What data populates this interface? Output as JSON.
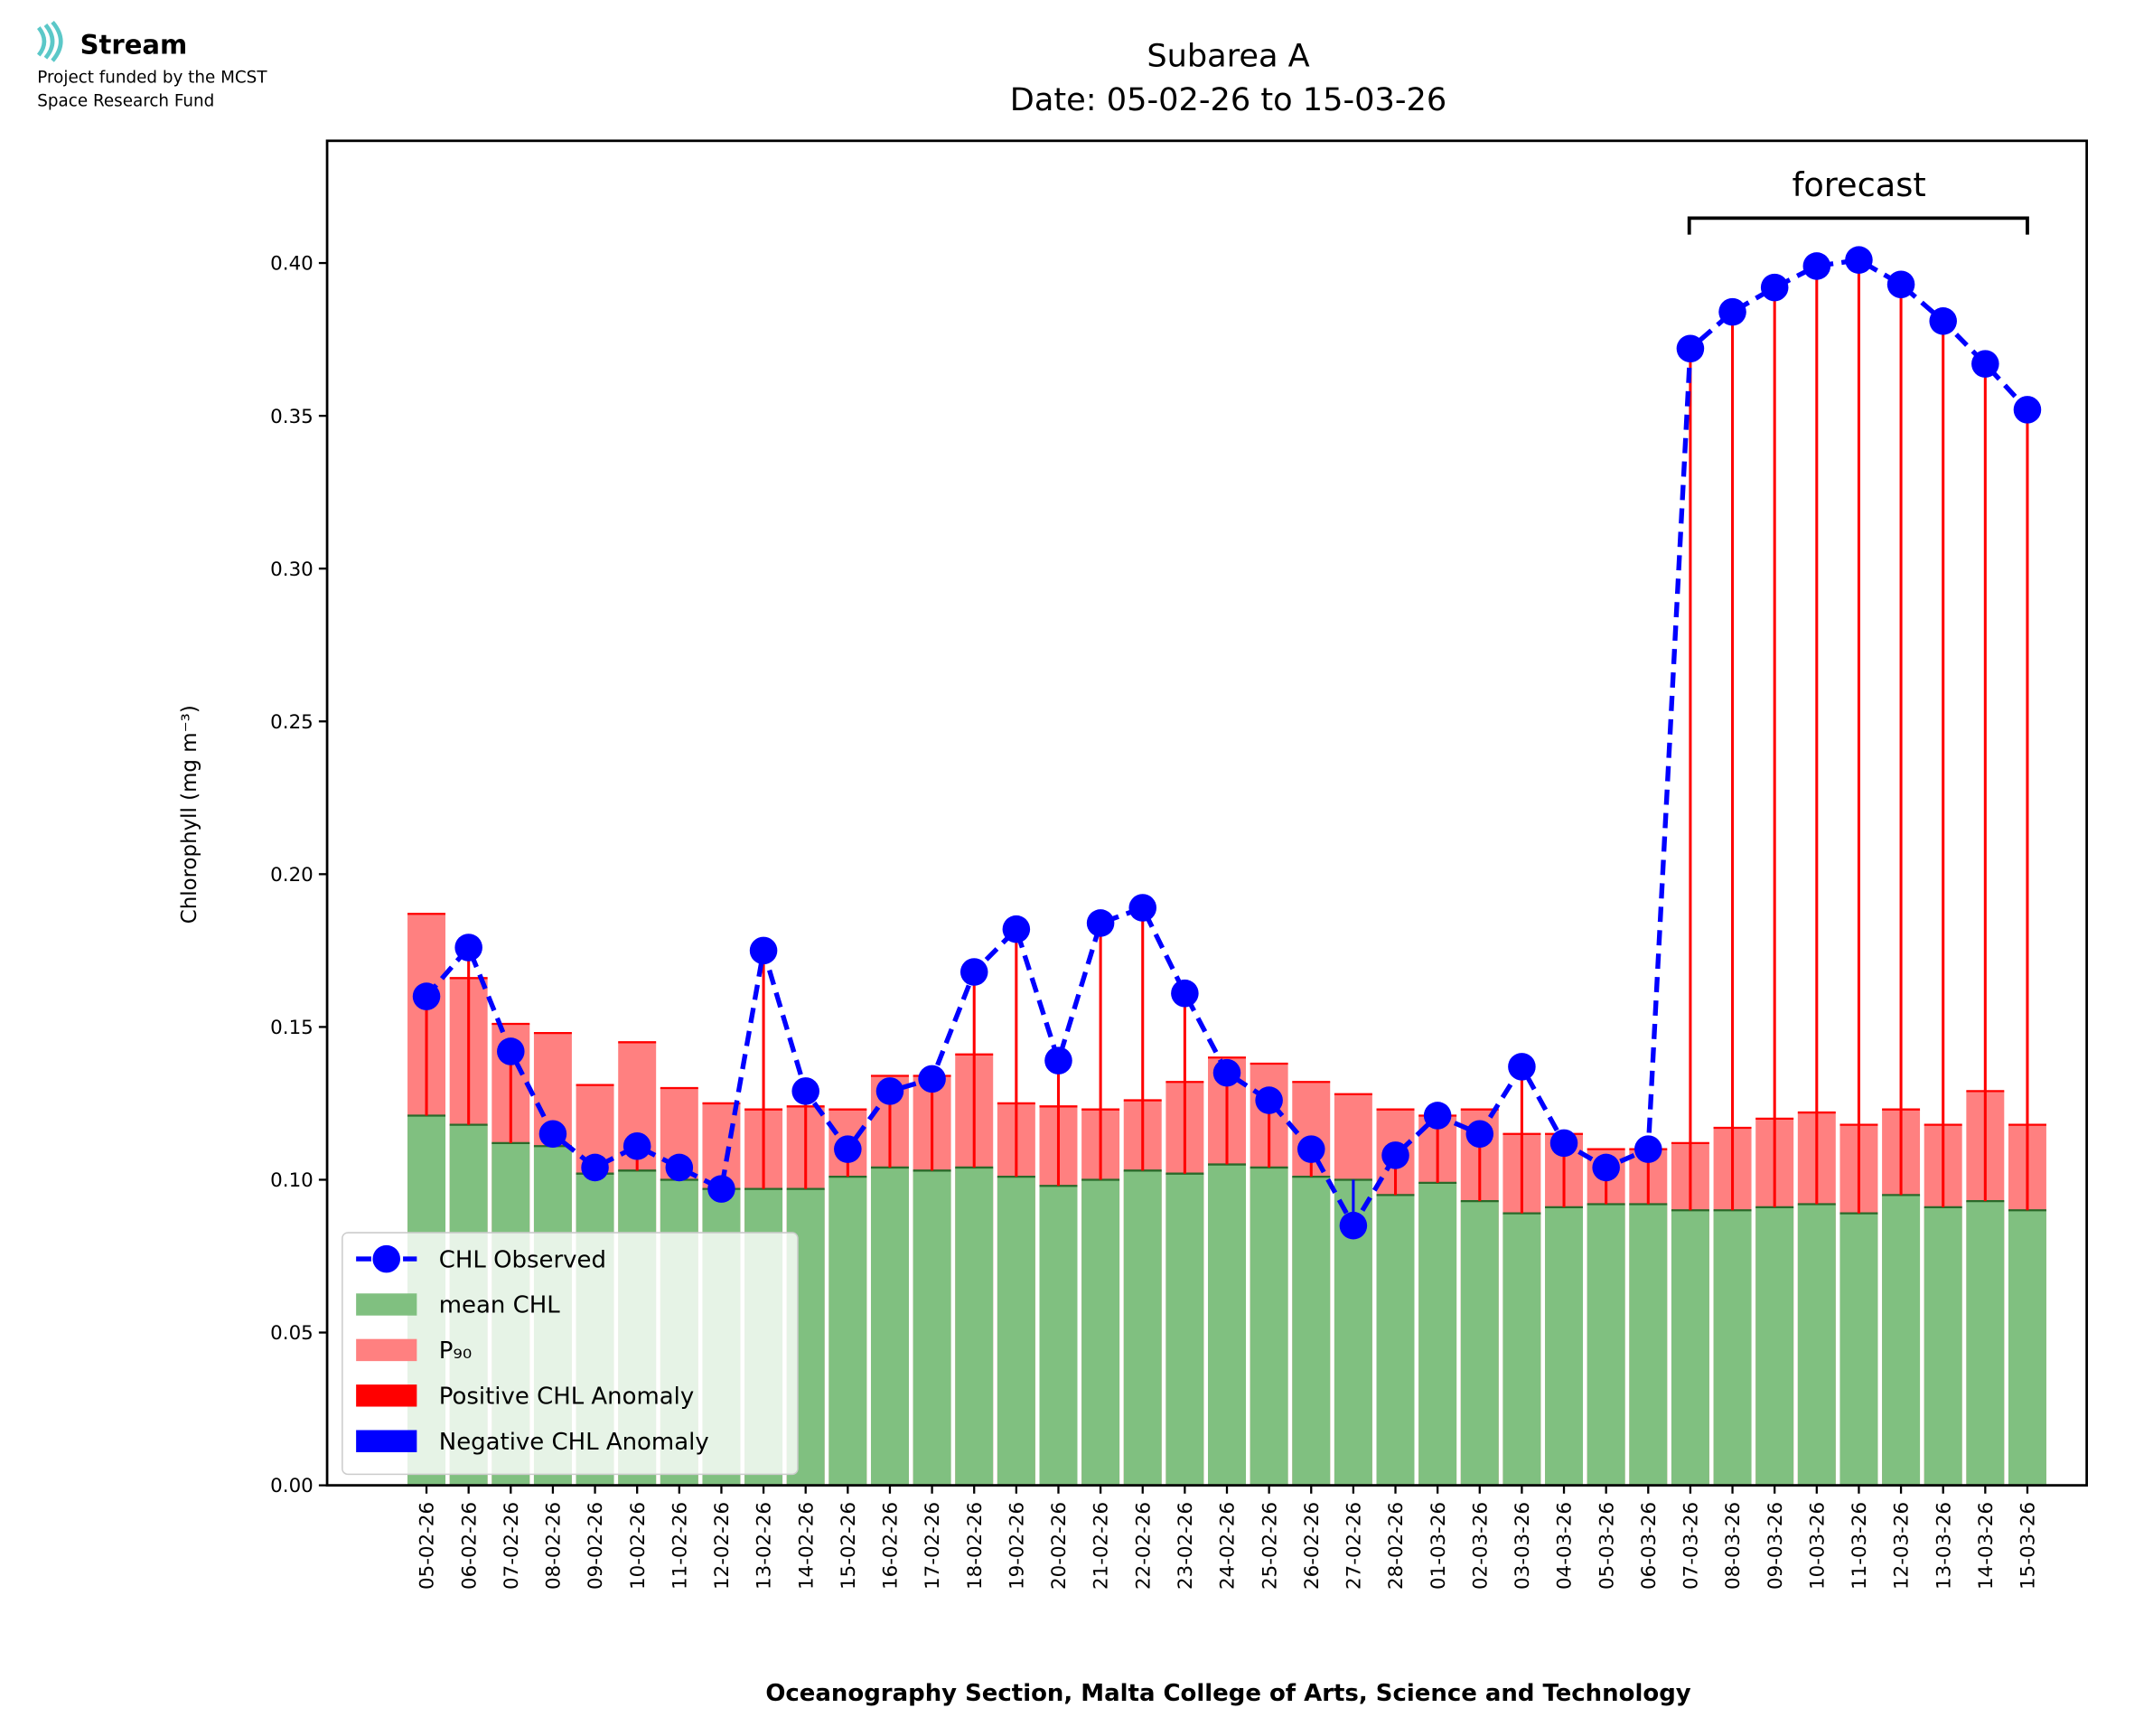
{
  "logo": {
    "name": "Stream",
    "lines": [
      "Project funded by the MCST",
      "Space Research Fund"
    ]
  },
  "chart_data": {
    "type": "bar_line",
    "title": [
      "Subarea A",
      "Date: 05-02-26 to 15-03-26"
    ],
    "ylabel": "Chlorophyll (mg m⁻³)",
    "xlabel": "Oceanography Section, Malta College of Arts, Science and Technology",
    "annotation": "forecast",
    "categories": [
      "05-02-26",
      "06-02-26",
      "07-02-26",
      "08-02-26",
      "09-02-26",
      "10-02-26",
      "11-02-26",
      "12-02-26",
      "13-02-26",
      "14-02-26",
      "15-02-26",
      "16-02-26",
      "17-02-26",
      "18-02-26",
      "19-02-26",
      "20-02-26",
      "21-02-26",
      "22-02-26",
      "23-02-26",
      "24-02-26",
      "25-02-26",
      "26-02-26",
      "27-02-26",
      "28-02-26",
      "01-03-26",
      "02-03-26",
      "03-03-26",
      "04-03-26",
      "05-03-26",
      "06-03-26",
      "07-03-26",
      "08-03-26",
      "09-03-26",
      "10-03-26",
      "11-03-26",
      "12-03-26",
      "13-03-26",
      "14-03-26",
      "15-03-26"
    ],
    "series": [
      {
        "name": "CHL Observed",
        "color": "#0000ff",
        "values": [
          0.16,
          0.176,
          0.142,
          0.115,
          0.104,
          0.111,
          0.104,
          0.097,
          0.175,
          0.129,
          0.11,
          0.129,
          0.133,
          0.168,
          0.182,
          0.139,
          0.184,
          0.189,
          0.161,
          0.135,
          0.126,
          0.11,
          0.085,
          0.108,
          0.121,
          0.115,
          0.137,
          0.112,
          0.104,
          0.11,
          0.372,
          0.384,
          0.392,
          0.399,
          0.401,
          0.393,
          0.381,
          0.367,
          0.352
        ]
      },
      {
        "name": "mean CHL",
        "color": "#80c080",
        "values": [
          0.121,
          0.118,
          0.112,
          0.111,
          0.102,
          0.103,
          0.1,
          0.097,
          0.097,
          0.097,
          0.101,
          0.104,
          0.103,
          0.104,
          0.101,
          0.098,
          0.1,
          0.103,
          0.102,
          0.105,
          0.104,
          0.101,
          0.1,
          0.095,
          0.099,
          0.093,
          0.089,
          0.091,
          0.092,
          0.092,
          0.09,
          0.09,
          0.091,
          0.092,
          0.089,
          0.095,
          0.091,
          0.093,
          0.09
        ]
      },
      {
        "name": "P₉₀",
        "color": "#ff8080",
        "values": [
          0.187,
          0.166,
          0.151,
          0.148,
          0.131,
          0.145,
          0.13,
          0.125,
          0.123,
          0.124,
          0.123,
          0.134,
          0.134,
          0.141,
          0.125,
          0.124,
          0.123,
          0.126,
          0.132,
          0.14,
          0.138,
          0.132,
          0.128,
          0.123,
          0.121,
          0.123,
          0.115,
          0.115,
          0.11,
          0.11,
          0.112,
          0.117,
          0.12,
          0.122,
          0.118,
          0.123,
          0.118,
          0.129,
          0.118
        ]
      }
    ],
    "anomaly_series": [
      {
        "name": "Positive CHL Anomaly",
        "color": "#ff0000"
      },
      {
        "name": "Negative CHL Anomaly",
        "color": "#0000ff"
      }
    ],
    "ylim": [
      0,
      0.44
    ],
    "yticks": [
      {
        "value": 0,
        "label": "0.00"
      },
      {
        "value": 0.05,
        "label": "0.05"
      },
      {
        "value": 0.1,
        "label": "0.10"
      },
      {
        "value": 0.15,
        "label": "0.15"
      },
      {
        "value": 0.2,
        "label": "0.20"
      },
      {
        "value": 0.25,
        "label": "0.25"
      },
      {
        "value": 0.3,
        "label": "0.30"
      },
      {
        "value": 0.35,
        "label": "0.35"
      },
      {
        "value": 0.4,
        "label": "0.40"
      }
    ],
    "legend": "lower left"
  }
}
